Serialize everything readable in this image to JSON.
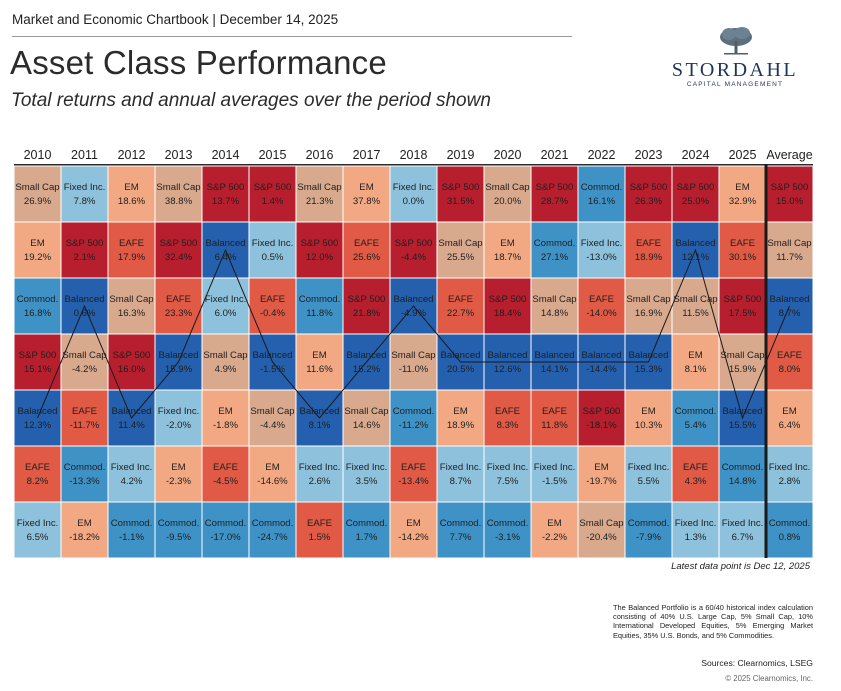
{
  "header": {
    "chartbook_line": "Market and Economic Chartbook | December 14, 2025",
    "title": "Asset Class Performance",
    "subtitle": "Total returns and annual averages over the period shown"
  },
  "logo": {
    "name": "STORDAHL",
    "tagline": "CAPITAL MANAGEMENT"
  },
  "colors": {
    "S&P 500": "#b81f2e",
    "EAFE": "#e05a46",
    "EM": "#f2a882",
    "Small Cap": "#d9a98e",
    "Fixed Inc.": "#8dc1dc",
    "Commod.": "#3f92c6",
    "Balanced": "#2460ad"
  },
  "chart_data": {
    "type": "table",
    "title": "Asset Class Performance",
    "columns": [
      "2010",
      "2011",
      "2012",
      "2013",
      "2014",
      "2015",
      "2016",
      "2017",
      "2018",
      "2019",
      "2020",
      "2021",
      "2022",
      "2023",
      "2024",
      "2025",
      "Average"
    ],
    "ranks": [
      [
        {
          "label": "Small Cap",
          "value": "26.9%"
        },
        {
          "label": "EM",
          "value": "19.2%"
        },
        {
          "label": "Commod.",
          "value": "16.8%"
        },
        {
          "label": "S&P 500",
          "value": "15.1%"
        },
        {
          "label": "Balanced",
          "value": "12.3%"
        },
        {
          "label": "EAFE",
          "value": "8.2%"
        },
        {
          "label": "Fixed Inc.",
          "value": "6.5%"
        }
      ],
      [
        {
          "label": "Fixed Inc.",
          "value": "7.8%"
        },
        {
          "label": "S&P 500",
          "value": "2.1%"
        },
        {
          "label": "Balanced",
          "value": "0.6%"
        },
        {
          "label": "Small Cap",
          "value": "-4.2%"
        },
        {
          "label": "EAFE",
          "value": "-11.7%"
        },
        {
          "label": "Commod.",
          "value": "-13.3%"
        },
        {
          "label": "EM",
          "value": "-18.2%"
        }
      ],
      [
        {
          "label": "EM",
          "value": "18.6%"
        },
        {
          "label": "EAFE",
          "value": "17.9%"
        },
        {
          "label": "Small Cap",
          "value": "16.3%"
        },
        {
          "label": "S&P 500",
          "value": "16.0%"
        },
        {
          "label": "Balanced",
          "value": "11.4%"
        },
        {
          "label": "Fixed Inc.",
          "value": "4.2%"
        },
        {
          "label": "Commod.",
          "value": "-1.1%"
        }
      ],
      [
        {
          "label": "Small Cap",
          "value": "38.8%"
        },
        {
          "label": "S&P 500",
          "value": "32.4%"
        },
        {
          "label": "EAFE",
          "value": "23.3%"
        },
        {
          "label": "Balanced",
          "value": "15.9%"
        },
        {
          "label": "Fixed Inc.",
          "value": "-2.0%"
        },
        {
          "label": "EM",
          "value": "-2.3%"
        },
        {
          "label": "Commod.",
          "value": "-9.5%"
        }
      ],
      [
        {
          "label": "S&P 500",
          "value": "13.7%"
        },
        {
          "label": "Balanced",
          "value": "6.4%"
        },
        {
          "label": "Fixed Inc.",
          "value": "6.0%"
        },
        {
          "label": "Small Cap",
          "value": "4.9%"
        },
        {
          "label": "EM",
          "value": "-1.8%"
        },
        {
          "label": "EAFE",
          "value": "-4.5%"
        },
        {
          "label": "Commod.",
          "value": "-17.0%"
        }
      ],
      [
        {
          "label": "S&P 500",
          "value": "1.4%"
        },
        {
          "label": "Fixed Inc.",
          "value": "0.5%"
        },
        {
          "label": "EAFE",
          "value": "-0.4%"
        },
        {
          "label": "Balanced",
          "value": "-1.5%"
        },
        {
          "label": "Small Cap",
          "value": "-4.4%"
        },
        {
          "label": "EM",
          "value": "-14.6%"
        },
        {
          "label": "Commod.",
          "value": "-24.7%"
        }
      ],
      [
        {
          "label": "Small Cap",
          "value": "21.3%"
        },
        {
          "label": "S&P 500",
          "value": "12.0%"
        },
        {
          "label": "Commod.",
          "value": "11.8%"
        },
        {
          "label": "EM",
          "value": "11.6%"
        },
        {
          "label": "Balanced",
          "value": "8.1%"
        },
        {
          "label": "Fixed Inc.",
          "value": "2.6%"
        },
        {
          "label": "EAFE",
          "value": "1.5%"
        }
      ],
      [
        {
          "label": "EM",
          "value": "37.8%"
        },
        {
          "label": "EAFE",
          "value": "25.6%"
        },
        {
          "label": "S&P 500",
          "value": "21.8%"
        },
        {
          "label": "Balanced",
          "value": "15.2%"
        },
        {
          "label": "Small Cap",
          "value": "14.6%"
        },
        {
          "label": "Fixed Inc.",
          "value": "3.5%"
        },
        {
          "label": "Commod.",
          "value": "1.7%"
        }
      ],
      [
        {
          "label": "Fixed Inc.",
          "value": "0.0%"
        },
        {
          "label": "S&P 500",
          "value": "-4.4%"
        },
        {
          "label": "Balanced",
          "value": "-4.9%"
        },
        {
          "label": "Small Cap",
          "value": "-11.0%"
        },
        {
          "label": "Commod.",
          "value": "-11.2%"
        },
        {
          "label": "EAFE",
          "value": "-13.4%"
        },
        {
          "label": "EM",
          "value": "-14.2%"
        }
      ],
      [
        {
          "label": "S&P 500",
          "value": "31.5%"
        },
        {
          "label": "Small Cap",
          "value": "25.5%"
        },
        {
          "label": "EAFE",
          "value": "22.7%"
        },
        {
          "label": "Balanced",
          "value": "20.5%"
        },
        {
          "label": "EM",
          "value": "18.9%"
        },
        {
          "label": "Fixed Inc.",
          "value": "8.7%"
        },
        {
          "label": "Commod.",
          "value": "7.7%"
        }
      ],
      [
        {
          "label": "Small Cap",
          "value": "20.0%"
        },
        {
          "label": "EM",
          "value": "18.7%"
        },
        {
          "label": "S&P 500",
          "value": "18.4%"
        },
        {
          "label": "Balanced",
          "value": "12.6%"
        },
        {
          "label": "EAFE",
          "value": "8.3%"
        },
        {
          "label": "Fixed Inc.",
          "value": "7.5%"
        },
        {
          "label": "Commod.",
          "value": "-3.1%"
        }
      ],
      [
        {
          "label": "S&P 500",
          "value": "28.7%"
        },
        {
          "label": "Commod.",
          "value": "27.1%"
        },
        {
          "label": "Small Cap",
          "value": "14.8%"
        },
        {
          "label": "Balanced",
          "value": "14.1%"
        },
        {
          "label": "EAFE",
          "value": "11.8%"
        },
        {
          "label": "Fixed Inc.",
          "value": "-1.5%"
        },
        {
          "label": "EM",
          "value": "-2.2%"
        }
      ],
      [
        {
          "label": "Commod.",
          "value": "16.1%"
        },
        {
          "label": "Fixed Inc.",
          "value": "-13.0%"
        },
        {
          "label": "EAFE",
          "value": "-14.0%"
        },
        {
          "label": "Balanced",
          "value": "-14.4%"
        },
        {
          "label": "S&P 500",
          "value": "-18.1%"
        },
        {
          "label": "EM",
          "value": "-19.7%"
        },
        {
          "label": "Small Cap",
          "value": "-20.4%"
        }
      ],
      [
        {
          "label": "S&P 500",
          "value": "26.3%"
        },
        {
          "label": "EAFE",
          "value": "18.9%"
        },
        {
          "label": "Small Cap",
          "value": "16.9%"
        },
        {
          "label": "Balanced",
          "value": "15.3%"
        },
        {
          "label": "EM",
          "value": "10.3%"
        },
        {
          "label": "Fixed Inc.",
          "value": "5.5%"
        },
        {
          "label": "Commod.",
          "value": "-7.9%"
        }
      ],
      [
        {
          "label": "S&P 500",
          "value": "25.0%"
        },
        {
          "label": "Balanced",
          "value": "12.1%"
        },
        {
          "label": "Small Cap",
          "value": "11.5%"
        },
        {
          "label": "EM",
          "value": "8.1%"
        },
        {
          "label": "Commod.",
          "value": "5.4%"
        },
        {
          "label": "EAFE",
          "value": "4.3%"
        },
        {
          "label": "Fixed Inc.",
          "value": "1.3%"
        }
      ],
      [
        {
          "label": "EM",
          "value": "32.9%"
        },
        {
          "label": "EAFE",
          "value": "30.1%"
        },
        {
          "label": "S&P 500",
          "value": "17.5%"
        },
        {
          "label": "Small Cap",
          "value": "15.9%"
        },
        {
          "label": "Balanced",
          "value": "15.5%"
        },
        {
          "label": "Commod.",
          "value": "14.8%"
        },
        {
          "label": "Fixed Inc.",
          "value": "6.7%"
        }
      ],
      [
        {
          "label": "S&P 500",
          "value": "15.0%"
        },
        {
          "label": "Small Cap",
          "value": "11.7%"
        },
        {
          "label": "Balanced",
          "value": "8.7%"
        },
        {
          "label": "EAFE",
          "value": "8.0%"
        },
        {
          "label": "EM",
          "value": "6.4%"
        },
        {
          "label": "Fixed Inc.",
          "value": "2.8%"
        },
        {
          "label": "Commod.",
          "value": "0.8%"
        }
      ]
    ],
    "highlight_series": "Balanced"
  },
  "footer": {
    "latest_data": "Latest data point is Dec 12, 2025",
    "note": "The Balanced Portfolio is a 60/40 historical index calculation consisting of 40% U.S. Large Cap, 5% Small Cap, 10% International Developed Equities, 5% Emerging Market Equities, 35% U.S. Bonds, and 5% Commodities.",
    "sources": "Sources: Clearnomics, LSEG",
    "copyright": "© 2025 Clearnomics, Inc."
  }
}
